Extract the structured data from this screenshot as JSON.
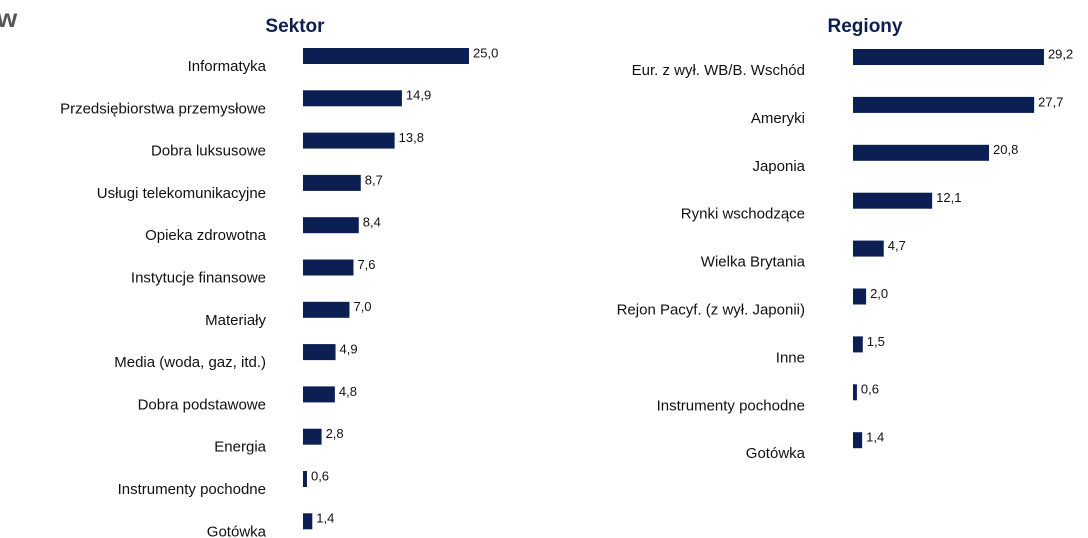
{
  "corner_text": "w",
  "chart_data": [
    {
      "type": "bar",
      "orientation": "horizontal",
      "title": "Sektor",
      "color": "#0c1f52",
      "categories": [
        "Informatyka",
        "Przedsiębiorstwa przemysłowe",
        "Dobra luksusowe",
        "Usługi telekomunikacyjne",
        "Opieka zdrowotna",
        "Instytucje finansowe",
        "Materiały",
        "Media (woda, gaz, itd.)",
        "Dobra podstawowe",
        "Energia",
        "Instrumenty pochodne",
        "Gotówka"
      ],
      "values": [
        25.0,
        14.9,
        13.8,
        8.7,
        8.4,
        7.6,
        7.0,
        4.9,
        4.8,
        2.8,
        0.6,
        1.4
      ],
      "value_labels": [
        "25,0",
        "14,9",
        "13,8",
        "8,7",
        "8,4",
        "7,6",
        "7,0",
        "4,9",
        "4,8",
        "2,8",
        "0,6",
        "1,4"
      ]
    },
    {
      "type": "bar",
      "orientation": "horizontal",
      "title": "Regiony",
      "color": "#0c1f52",
      "categories": [
        "Eur. z wył. WB/B. Wschód",
        "Ameryki",
        "Japonia",
        "Rynki wschodzące",
        "Wielka Brytania",
        "Rejon Pacyf. (z wył. Japonii)",
        "Inne",
        "Instrumenty pochodne",
        "Gotówka"
      ],
      "values": [
        29.2,
        27.7,
        20.8,
        12.1,
        4.7,
        2.0,
        1.5,
        0.6,
        1.4
      ],
      "value_labels": [
        "29,2",
        "27,7",
        "20,8",
        "12,1",
        "4,7",
        "2,0",
        "1,5",
        "0,6",
        "1,4"
      ]
    }
  ]
}
